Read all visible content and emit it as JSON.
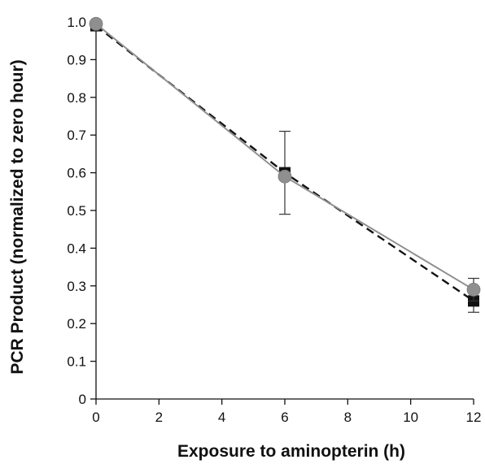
{
  "chart_data": {
    "type": "line",
    "xlabel": "Exposure to aminopterin (h)",
    "ylabel": "PCR Product (normalized to zero hour)",
    "xlim": [
      0,
      12
    ],
    "ylim": [
      0,
      1.0
    ],
    "x_ticks": [
      "0",
      "2",
      "4",
      "6",
      "8",
      "10",
      "12"
    ],
    "y_ticks": [
      "0",
      "0.1",
      "0.2",
      "0.3",
      "0.4",
      "0.5",
      "0.6",
      "0.7",
      "0.8",
      "0.9",
      "1.0"
    ],
    "grid": false,
    "series": [
      {
        "marker": "square",
        "line_style": "dashed",
        "color": "#111111",
        "x": [
          0,
          6,
          12
        ],
        "y": [
          0.99,
          0.6,
          0.26
        ],
        "error": [
          0,
          0.11,
          0.03
        ]
      },
      {
        "marker": "circle",
        "line_style": "solid",
        "color": "#8f8f8f",
        "x": [
          0,
          6,
          12
        ],
        "y": [
          0.995,
          0.59,
          0.29
        ],
        "error": [
          0,
          0,
          0.03
        ]
      }
    ]
  }
}
